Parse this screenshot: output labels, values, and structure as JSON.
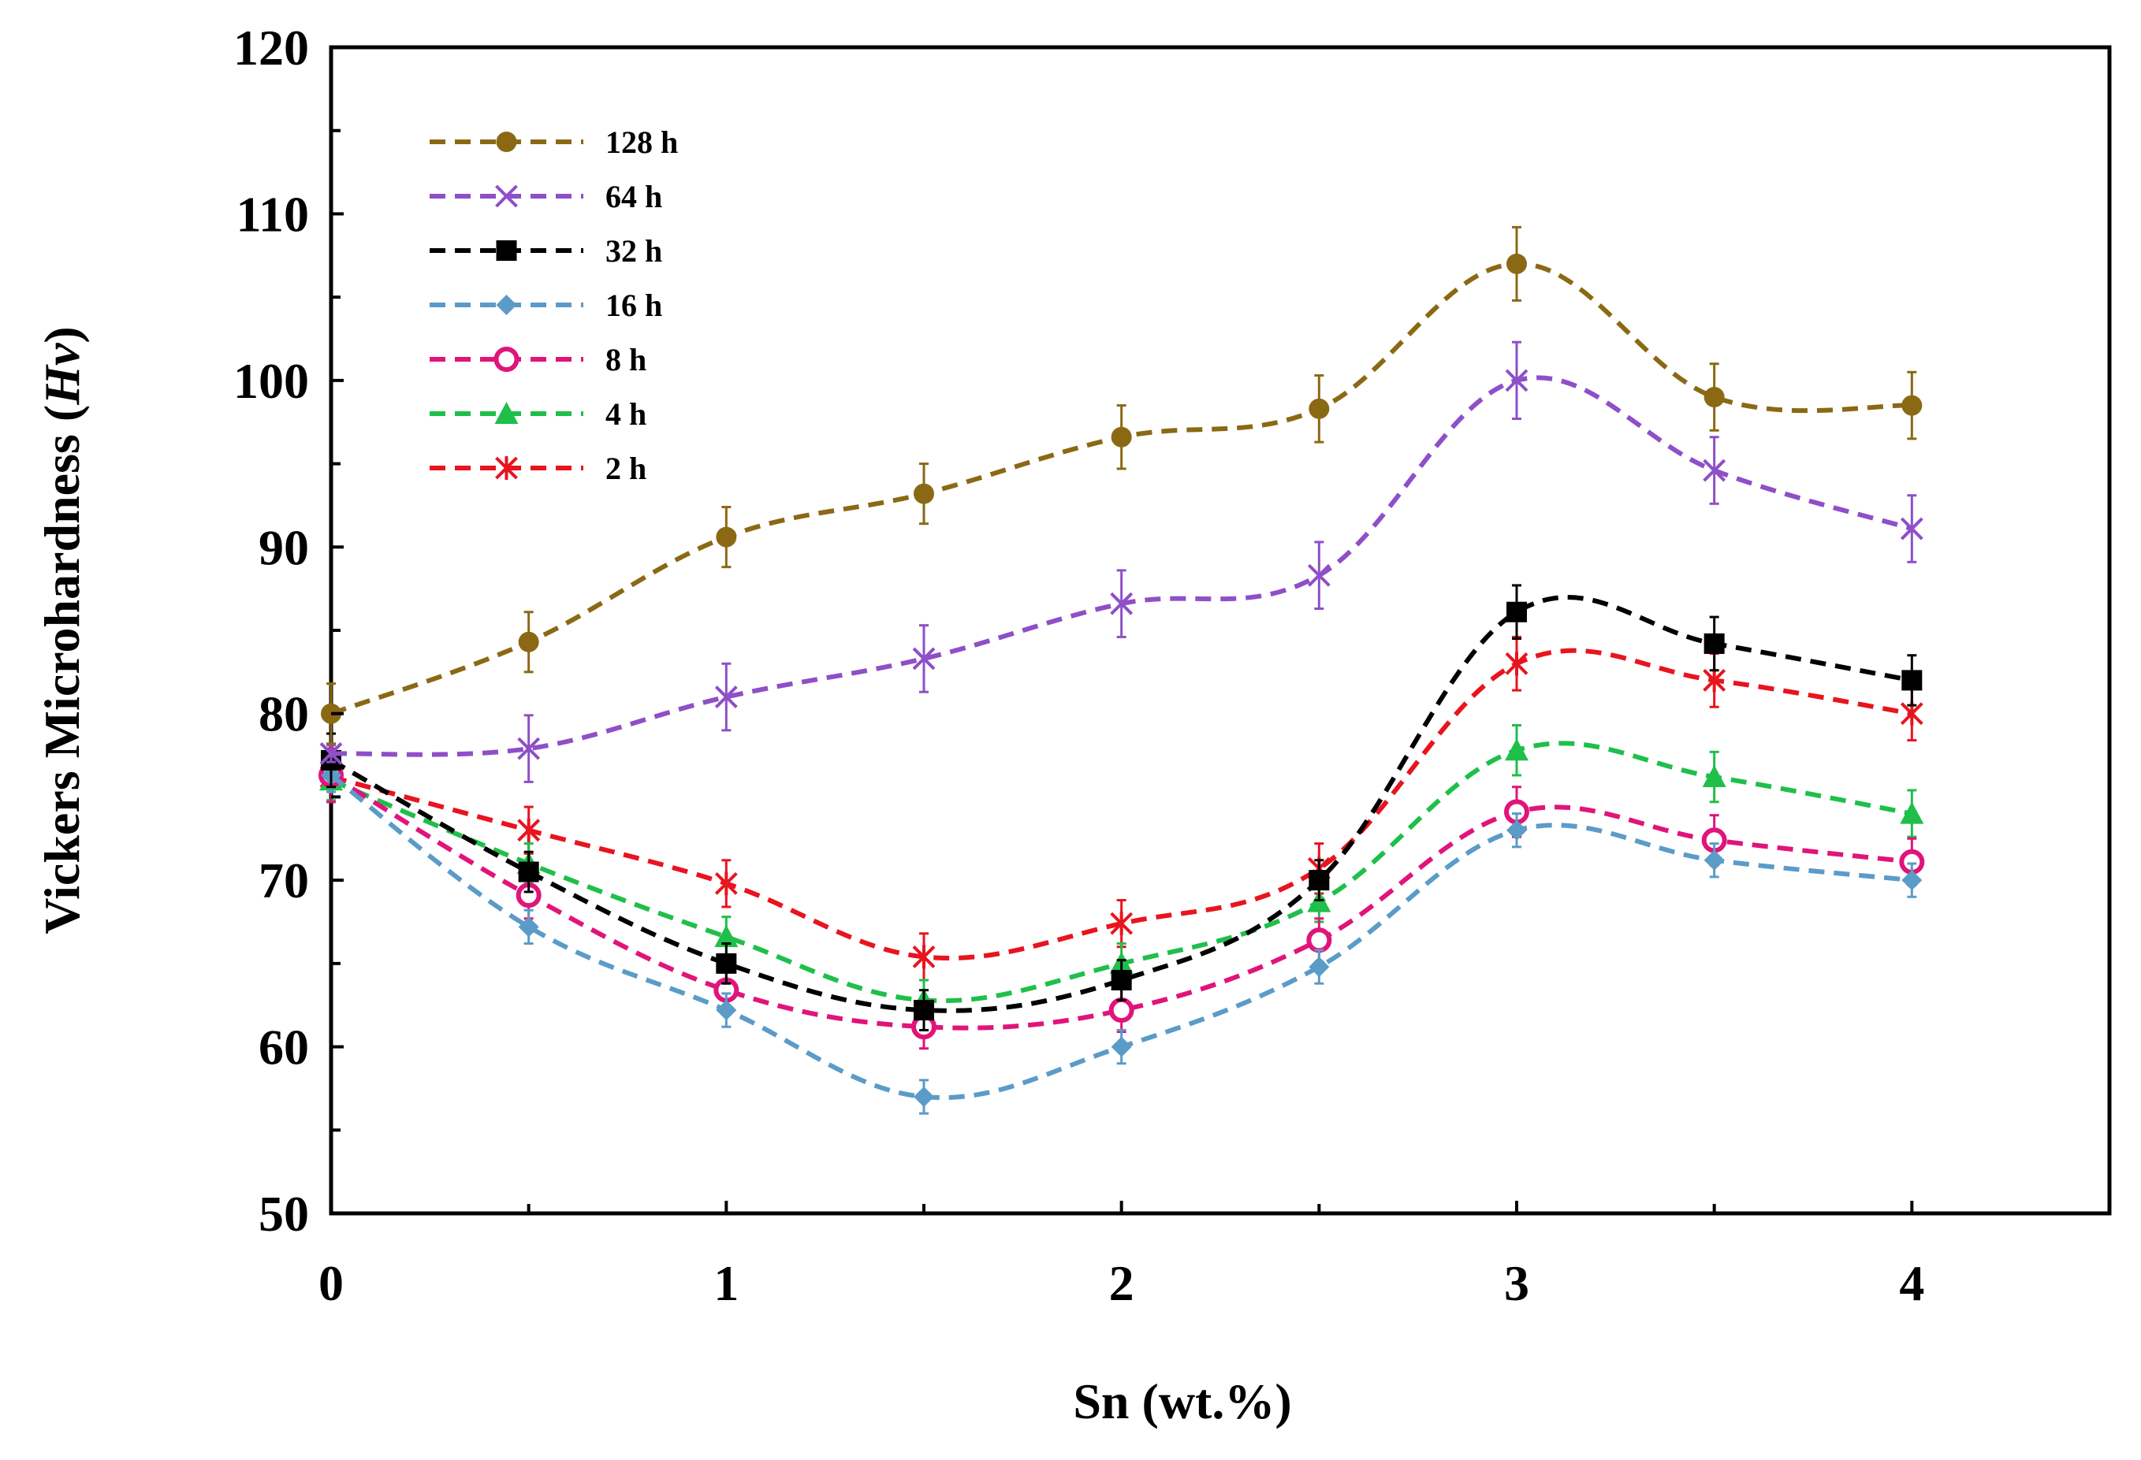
{
  "chart_data": {
    "type": "line",
    "title": "",
    "xlabel": "Sn (wt.%)",
    "ylabel_prefix": "Vickers  Microhardness (",
    "ylabel_italic": "Hv",
    "ylabel_suffix": ")",
    "xlim": [
      0,
      4.5
    ],
    "ylim": [
      50,
      120
    ],
    "x_ticks": [
      0,
      1,
      2,
      3,
      4
    ],
    "x_tick_labels": [
      "0",
      "1",
      "2",
      "3",
      "4"
    ],
    "y_ticks": [
      50,
      60,
      70,
      80,
      90,
      100,
      110,
      120
    ],
    "y_tick_labels": [
      "50",
      "60",
      "70",
      "80",
      "90",
      "100",
      "110",
      "120"
    ],
    "grid": false,
    "legend_position": "top-left",
    "x": [
      0,
      0.5,
      1,
      1.5,
      2,
      2.5,
      3,
      3.5,
      4
    ],
    "series": [
      {
        "name": "128 h",
        "color": "#8B6914",
        "marker": "circle",
        "values": [
          80,
          84.3,
          90.6,
          93.2,
          96.6,
          98.3,
          107,
          99,
          98.5
        ],
        "errors": [
          1.8,
          1.8,
          1.8,
          1.8,
          1.9,
          2.0,
          2.2,
          2.0,
          2.0
        ]
      },
      {
        "name": "64 h",
        "color": "#8E4FC8",
        "marker": "x",
        "values": [
          77.6,
          77.9,
          81,
          83.3,
          86.6,
          88.3,
          100,
          94.6,
          91.1
        ],
        "errors": [
          0.5,
          2.0,
          2.0,
          2.0,
          2.0,
          2.0,
          2.3,
          2.0,
          2.0
        ]
      },
      {
        "name": "32 h",
        "color": "#000000",
        "marker": "square",
        "values": [
          77.2,
          70.5,
          65,
          62.2,
          64,
          70,
          86.1,
          84.2,
          82
        ],
        "errors": [
          1.6,
          1.2,
          1.2,
          1.2,
          1.2,
          1.2,
          1.6,
          1.6,
          1.5
        ]
      },
      {
        "name": "16 h",
        "color": "#5B9BC8",
        "marker": "diamond",
        "values": [
          76.3,
          67.2,
          62.2,
          57,
          60,
          64.8,
          73,
          71.2,
          70
        ],
        "errors": [
          1.0,
          1.0,
          1.0,
          1.0,
          1.0,
          1.0,
          1.0,
          1.0,
          1.0
        ]
      },
      {
        "name": "8 h",
        "color": "#E0147A",
        "marker": "open-circle",
        "values": [
          76.3,
          69.1,
          63.4,
          61.2,
          62.2,
          66.4,
          74.1,
          72.4,
          71.1
        ],
        "errors": [
          1.6,
          1.4,
          1.3,
          1.3,
          1.3,
          1.3,
          1.5,
          1.5,
          1.4
        ]
      },
      {
        "name": "4 h",
        "color": "#1FBF4A",
        "marker": "triangle",
        "values": [
          76,
          71,
          66.6,
          62.8,
          65,
          68.7,
          77.8,
          76.2,
          74
        ],
        "errors": [
          1.2,
          1.2,
          1.2,
          1.2,
          1.2,
          1.2,
          1.5,
          1.5,
          1.4
        ]
      },
      {
        "name": "2 h",
        "color": "#E8141E",
        "marker": "star",
        "values": [
          76.2,
          73,
          69.8,
          65.4,
          67.4,
          70.7,
          83,
          82,
          80
        ],
        "errors": [
          1.5,
          1.4,
          1.4,
          1.4,
          1.4,
          1.5,
          1.6,
          1.6,
          1.6
        ]
      }
    ]
  }
}
